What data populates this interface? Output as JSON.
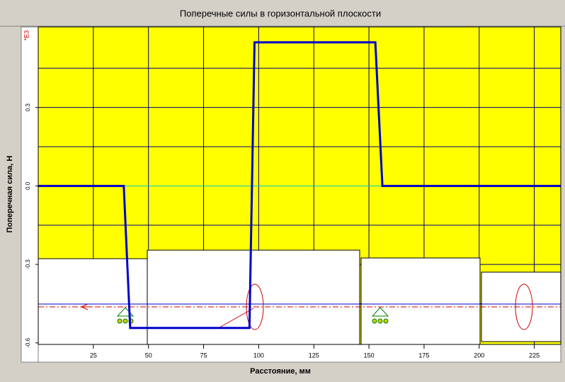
{
  "chart_data": {
    "type": "line",
    "title": "Поперечные силы в горизонтальной плоскости",
    "x_label": "Расстояние, мм",
    "y_label": "Поперечная сила, Н",
    "y_multiplier": "*E3",
    "x": [
      0,
      38.8,
      41.7,
      95.8,
      98.1,
      152.9,
      156.1,
      237
    ],
    "series": [
      {
        "color": "#0000cc",
        "values": [
          0,
          0,
          -0.543,
          -0.543,
          0.549,
          0.549,
          0,
          0
        ]
      }
    ],
    "xlim": [
      0,
      237
    ],
    "ylim": [
      -0.606,
      0.608
    ],
    "xticks": [
      25,
      50,
      75,
      100,
      125,
      150,
      175,
      200,
      225
    ],
    "yticks": [
      -0.6,
      -0.3,
      {
        "value": 0,
        "label": "0.0"
      },
      0.3
    ],
    "grid_yticks": [
      -0.45,
      -0.3,
      -0.15,
      0.15,
      0.3,
      0.45
    ],
    "grid": true,
    "plot_background": "#ffff00",
    "grid_color": "#000080",
    "zero_line_color": "#00cccc"
  }
}
